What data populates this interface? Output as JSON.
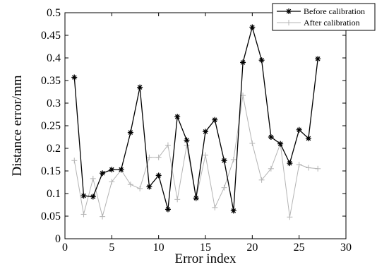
{
  "chart_data": {
    "type": "line",
    "xlabel": "Error index",
    "ylabel": "Distance error/mm",
    "xlim": [
      0,
      30
    ],
    "ylim": [
      0,
      0.5
    ],
    "xticks": [
      0,
      5,
      10,
      15,
      20,
      25,
      30
    ],
    "yticks": [
      0,
      0.05,
      0.1,
      0.15,
      0.2,
      0.25,
      0.3,
      0.35,
      0.4,
      0.45,
      0.5
    ],
    "xtick_labels": [
      "0",
      "5",
      "10",
      "15",
      "20",
      "25",
      "30"
    ],
    "ytick_labels": [
      "0",
      "0.05",
      "0.1",
      "0.15",
      "0.2",
      "0.25",
      "0.3",
      "0.35",
      "0.4",
      "0.45",
      "0.5"
    ],
    "grid": false,
    "legend_position": "top-right",
    "x": [
      1,
      2,
      3,
      4,
      5,
      6,
      7,
      8,
      9,
      10,
      11,
      12,
      13,
      14,
      15,
      16,
      17,
      18,
      19,
      20,
      21,
      22,
      23,
      24,
      25,
      26,
      27
    ],
    "series": [
      {
        "name": "Before calibration",
        "color": "#000000",
        "marker": "star",
        "values": [
          0.357,
          0.095,
          0.093,
          0.145,
          0.153,
          0.153,
          0.235,
          0.335,
          0.115,
          0.14,
          0.065,
          0.27,
          0.218,
          0.09,
          0.237,
          0.263,
          0.173,
          0.062,
          0.39,
          0.468,
          0.395,
          0.225,
          0.21,
          0.167,
          0.241,
          0.222,
          0.398
        ]
      },
      {
        "name": "After calibration",
        "color": "#b4b4b4",
        "marker": "plus",
        "values": [
          0.173,
          0.054,
          0.133,
          0.049,
          0.126,
          0.152,
          0.12,
          0.111,
          0.18,
          0.18,
          0.207,
          0.087,
          0.207,
          0.089,
          0.185,
          0.069,
          0.113,
          0.175,
          0.317,
          0.211,
          0.13,
          0.155,
          0.21,
          0.048,
          0.164,
          0.157,
          0.155
        ]
      }
    ]
  }
}
